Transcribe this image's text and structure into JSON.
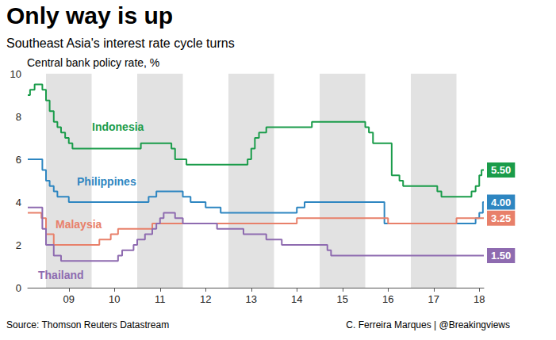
{
  "chart_data": {
    "type": "line",
    "line_style": "step",
    "title": "Only way is up",
    "subtitle": "Southeast Asia's interest rate cycle turns",
    "y_label": "Central bank policy rate, %",
    "source": "Source: Thomson Reuters Datastream",
    "credit": "C. Ferreira Marques | @Breakingviews",
    "grid": false,
    "xlim": [
      2008.6,
      2018.6
    ],
    "xticks": [
      {
        "value": 2009.5,
        "label": "09"
      },
      {
        "value": 2010.5,
        "label": "10"
      },
      {
        "value": 2011.5,
        "label": "11"
      },
      {
        "value": 2012.5,
        "label": "12"
      },
      {
        "value": 2013.5,
        "label": "13"
      },
      {
        "value": 2014.5,
        "label": "14"
      },
      {
        "value": 2015.5,
        "label": "15"
      },
      {
        "value": 2016.5,
        "label": "16"
      },
      {
        "value": 2017.5,
        "label": "17"
      },
      {
        "value": 2018.5,
        "label": "18"
      }
    ],
    "ylim": [
      0,
      10
    ],
    "yticks": [
      0,
      2,
      4,
      6,
      8,
      10
    ],
    "series": [
      {
        "name": "Indonesia",
        "color": "#1a9c4a",
        "x": [
          2008.6,
          2008.65,
          2008.75,
          2008.92,
          2009.0,
          2009.08,
          2009.17,
          2009.25,
          2009.33,
          2009.42,
          2009.5,
          2009.58,
          2011.08,
          2011.75,
          2011.83,
          2012.08,
          2013.42,
          2013.5,
          2013.58,
          2013.67,
          2013.83,
          2014.83,
          2016.0,
          2016.08,
          2016.17,
          2016.58,
          2016.75,
          2016.83,
          2017.58,
          2017.67,
          2018.33,
          2018.42,
          2018.5,
          2018.55,
          2018.6
        ],
        "values": [
          9.0,
          9.25,
          9.5,
          9.25,
          8.75,
          8.25,
          7.75,
          7.5,
          7.25,
          7.0,
          6.75,
          6.5,
          6.75,
          6.5,
          6.0,
          5.75,
          6.0,
          6.5,
          7.0,
          7.25,
          7.5,
          7.75,
          7.5,
          7.25,
          6.75,
          5.25,
          5.0,
          4.75,
          4.5,
          4.25,
          4.5,
          4.75,
          5.25,
          5.5,
          5.5
        ],
        "value_labels": [
          null,
          null,
          null,
          null,
          null,
          null,
          null,
          null,
          null,
          null,
          null,
          null,
          null,
          null,
          null,
          null,
          null,
          null,
          null,
          null,
          null,
          null,
          null,
          null,
          null,
          null,
          null,
          null,
          null,
          null,
          null,
          null,
          null,
          null,
          "5.50"
        ]
      },
      {
        "name": "Philippines",
        "color": "#2e86c1",
        "x": [
          2008.6,
          2008.92,
          2009.0,
          2009.08,
          2009.17,
          2009.25,
          2009.5,
          2011.25,
          2011.42,
          2012.0,
          2012.17,
          2012.5,
          2012.83,
          2014.5,
          2014.67,
          2016.42,
          2018.42,
          2018.5,
          2018.58,
          2018.6
        ],
        "values": [
          6.0,
          5.5,
          5.0,
          4.75,
          4.5,
          4.25,
          4.0,
          4.25,
          4.5,
          4.25,
          4.0,
          3.75,
          3.5,
          3.75,
          4.0,
          3.0,
          3.25,
          3.5,
          4.0,
          4.0
        ],
        "value_labels": [
          null,
          null,
          null,
          null,
          null,
          null,
          null,
          null,
          null,
          null,
          null,
          null,
          null,
          null,
          null,
          null,
          null,
          null,
          null,
          "4.00"
        ]
      },
      {
        "name": "Malaysia",
        "color": "#e8806a",
        "x": [
          2008.6,
          2008.9,
          2009.0,
          2009.17,
          2010.17,
          2010.42,
          2010.58,
          2011.33,
          2014.5,
          2016.5,
          2018.0,
          2018.6
        ],
        "values": [
          3.5,
          3.25,
          2.5,
          2.0,
          2.25,
          2.5,
          2.75,
          3.0,
          3.25,
          3.0,
          3.25,
          3.25
        ],
        "value_labels": [
          null,
          null,
          null,
          null,
          null,
          null,
          null,
          null,
          null,
          null,
          null,
          "3.25"
        ]
      },
      {
        "name": "Thailand",
        "color": "#8e6bb0",
        "x": [
          2008.6,
          2008.92,
          2009.0,
          2009.17,
          2009.33,
          2010.58,
          2010.67,
          2010.92,
          2011.0,
          2011.17,
          2011.33,
          2011.42,
          2011.5,
          2011.58,
          2011.83,
          2012.0,
          2012.75,
          2013.33,
          2013.83,
          2014.17,
          2015.17,
          2015.25,
          2018.6
        ],
        "values": [
          3.75,
          2.75,
          2.0,
          1.5,
          1.25,
          1.5,
          1.75,
          2.0,
          2.25,
          2.5,
          2.75,
          3.0,
          3.25,
          3.5,
          3.25,
          3.0,
          2.75,
          2.5,
          2.25,
          2.0,
          1.75,
          1.5,
          1.5
        ],
        "value_labels": [
          null,
          null,
          null,
          null,
          null,
          null,
          null,
          null,
          null,
          null,
          null,
          null,
          null,
          null,
          null,
          null,
          null,
          null,
          null,
          null,
          null,
          null,
          "1.50"
        ]
      }
    ]
  }
}
